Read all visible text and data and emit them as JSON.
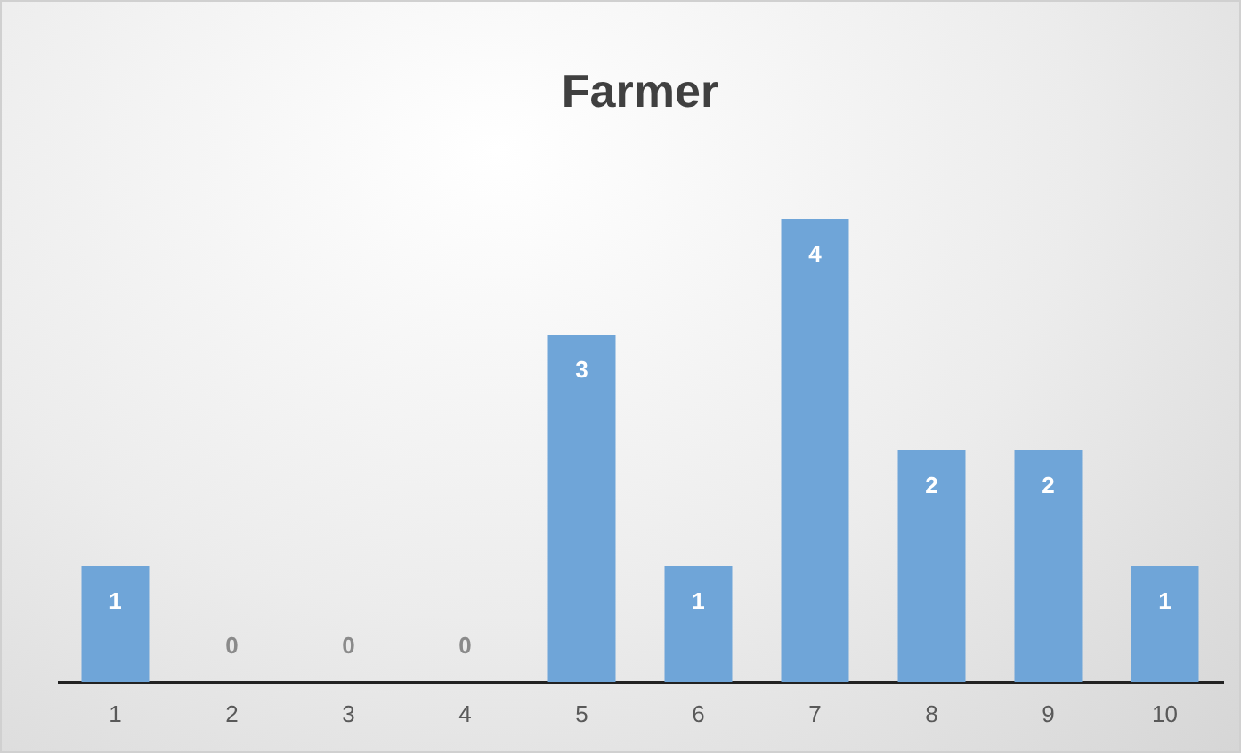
{
  "chart_data": {
    "type": "bar",
    "title": "Farmer",
    "categories": [
      "1",
      "2",
      "3",
      "4",
      "5",
      "6",
      "7",
      "8",
      "9",
      "10"
    ],
    "values": [
      1,
      0,
      0,
      0,
      3,
      1,
      4,
      2,
      2,
      1
    ],
    "color": "#6fa5d8",
    "data_labels": true
  }
}
